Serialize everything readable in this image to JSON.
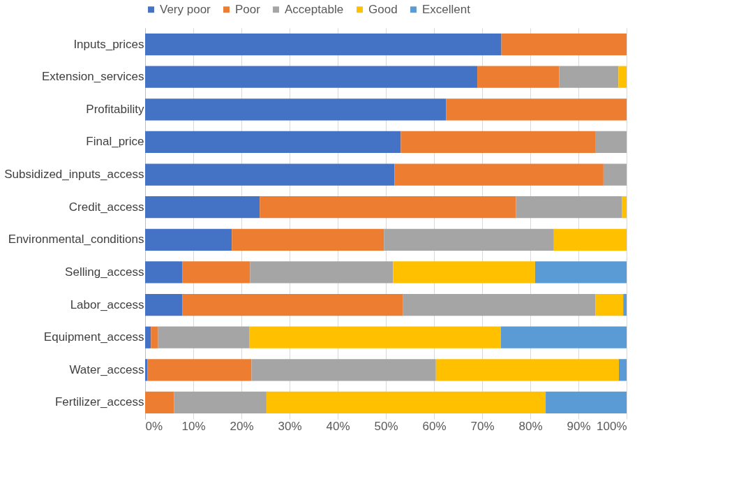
{
  "chart_data": {
    "type": "bar",
    "orientation": "horizontal",
    "stacked": true,
    "categories": [
      "Inputs_prices",
      "Extension_services",
      "Profitability",
      "Final_price",
      "Subsidized_inputs_access",
      "Credit_access",
      "Environmental_conditions",
      "Selling_access",
      "Labor_access",
      "Equipment_access",
      "Water_access",
      "Fertilizer_access"
    ],
    "series": [
      {
        "name": "Very poor",
        "color": "#4472c4",
        "values": [
          74,
          69,
          62.5,
          53.1,
          51.8,
          23.8,
          18,
          7.7,
          7.7,
          1.2,
          0.5,
          0
        ]
      },
      {
        "name": "Poor",
        "color": "#ed7d31",
        "values": [
          26,
          17,
          37.5,
          40.5,
          43.4,
          53.2,
          31.6,
          14.1,
          45.8,
          1.5,
          21.6,
          6
        ]
      },
      {
        "name": "Acceptable",
        "color": "#a5a5a5",
        "values": [
          0,
          12.3,
          0,
          6.4,
          4.8,
          22,
          35.3,
          29.7,
          40,
          18.9,
          38.3,
          19.2
        ]
      },
      {
        "name": "Good",
        "color": "#ffc000",
        "values": [
          0,
          1.7,
          0,
          0,
          0,
          1,
          15.1,
          29.5,
          5.8,
          52.3,
          38,
          58
        ]
      },
      {
        "name": "Excellent",
        "color": "#5b9bd5",
        "values": [
          0,
          0,
          0,
          0,
          0,
          0,
          0,
          19,
          0.7,
          26.1,
          1.6,
          16.8
        ]
      }
    ],
    "xlim": [
      0,
      100
    ],
    "xticks": [
      {
        "value": 0,
        "label": "0%"
      },
      {
        "value": 10,
        "label": "10%"
      },
      {
        "value": 20,
        "label": "20%"
      },
      {
        "value": 30,
        "label": "30%"
      },
      {
        "value": 40,
        "label": "40%"
      },
      {
        "value": 50,
        "label": "50%"
      },
      {
        "value": 60,
        "label": "60%"
      },
      {
        "value": 70,
        "label": "70%"
      },
      {
        "value": 80,
        "label": "80%"
      },
      {
        "value": 90,
        "label": "90%"
      },
      {
        "value": 100,
        "label": "100%"
      }
    ],
    "grid": "x",
    "legend": "top"
  }
}
